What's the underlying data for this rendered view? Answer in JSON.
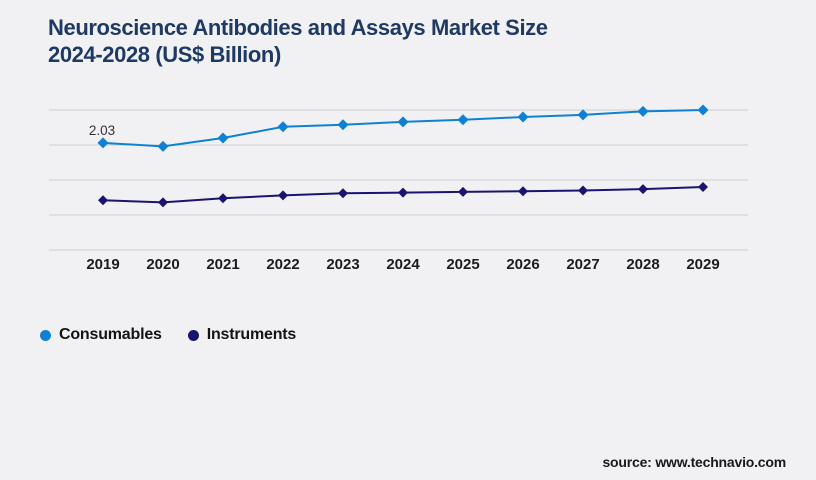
{
  "title": {
    "line1": "Neuroscience Antibodies and Assays Market Size",
    "line2": "2024-2028 (US$ Billion)"
  },
  "legend": [
    {
      "label": "Consumables",
      "color": "#0f81d3"
    },
    {
      "label": "Instruments",
      "color": "#1a1470"
    }
  ],
  "source": "source: www.technavio.com",
  "chart_data": {
    "type": "line",
    "title": "Neuroscience Antibodies and Assays Market Size 2024-2028 (US$ Billion)",
    "categories": [
      "2019",
      "2020",
      "2021",
      "2022",
      "2023",
      "2024",
      "2025",
      "2026",
      "2027",
      "2028",
      "2029"
    ],
    "series": [
      {
        "name": "Consumables",
        "color": "#0f81d3",
        "marker": "diamond",
        "values": [
          2.03,
          1.98,
          2.1,
          2.26,
          2.29,
          2.33,
          2.36,
          2.4,
          2.43,
          2.48,
          2.5
        ]
      },
      {
        "name": "Instruments",
        "color": "#1a1470",
        "marker": "diamond",
        "values": [
          1.21,
          1.18,
          1.24,
          1.28,
          1.31,
          1.32,
          1.33,
          1.34,
          1.35,
          1.37,
          1.4
        ]
      }
    ],
    "annotations": [
      {
        "series": "Consumables",
        "category": "2019",
        "text": "2.03"
      }
    ],
    "xlabel": "",
    "ylabel": "",
    "ylim": [
      0.5,
      2.5
    ],
    "grid": true,
    "gridline_step": 0.5,
    "y_axis_labels_visible": false,
    "legend_position": "bottom-left"
  },
  "colors": {
    "background": "#f1f1f3",
    "gridline": "#cdced2",
    "title": "#1e3a62",
    "axis_label": "#1c1c1c",
    "data_label": "#333333"
  }
}
